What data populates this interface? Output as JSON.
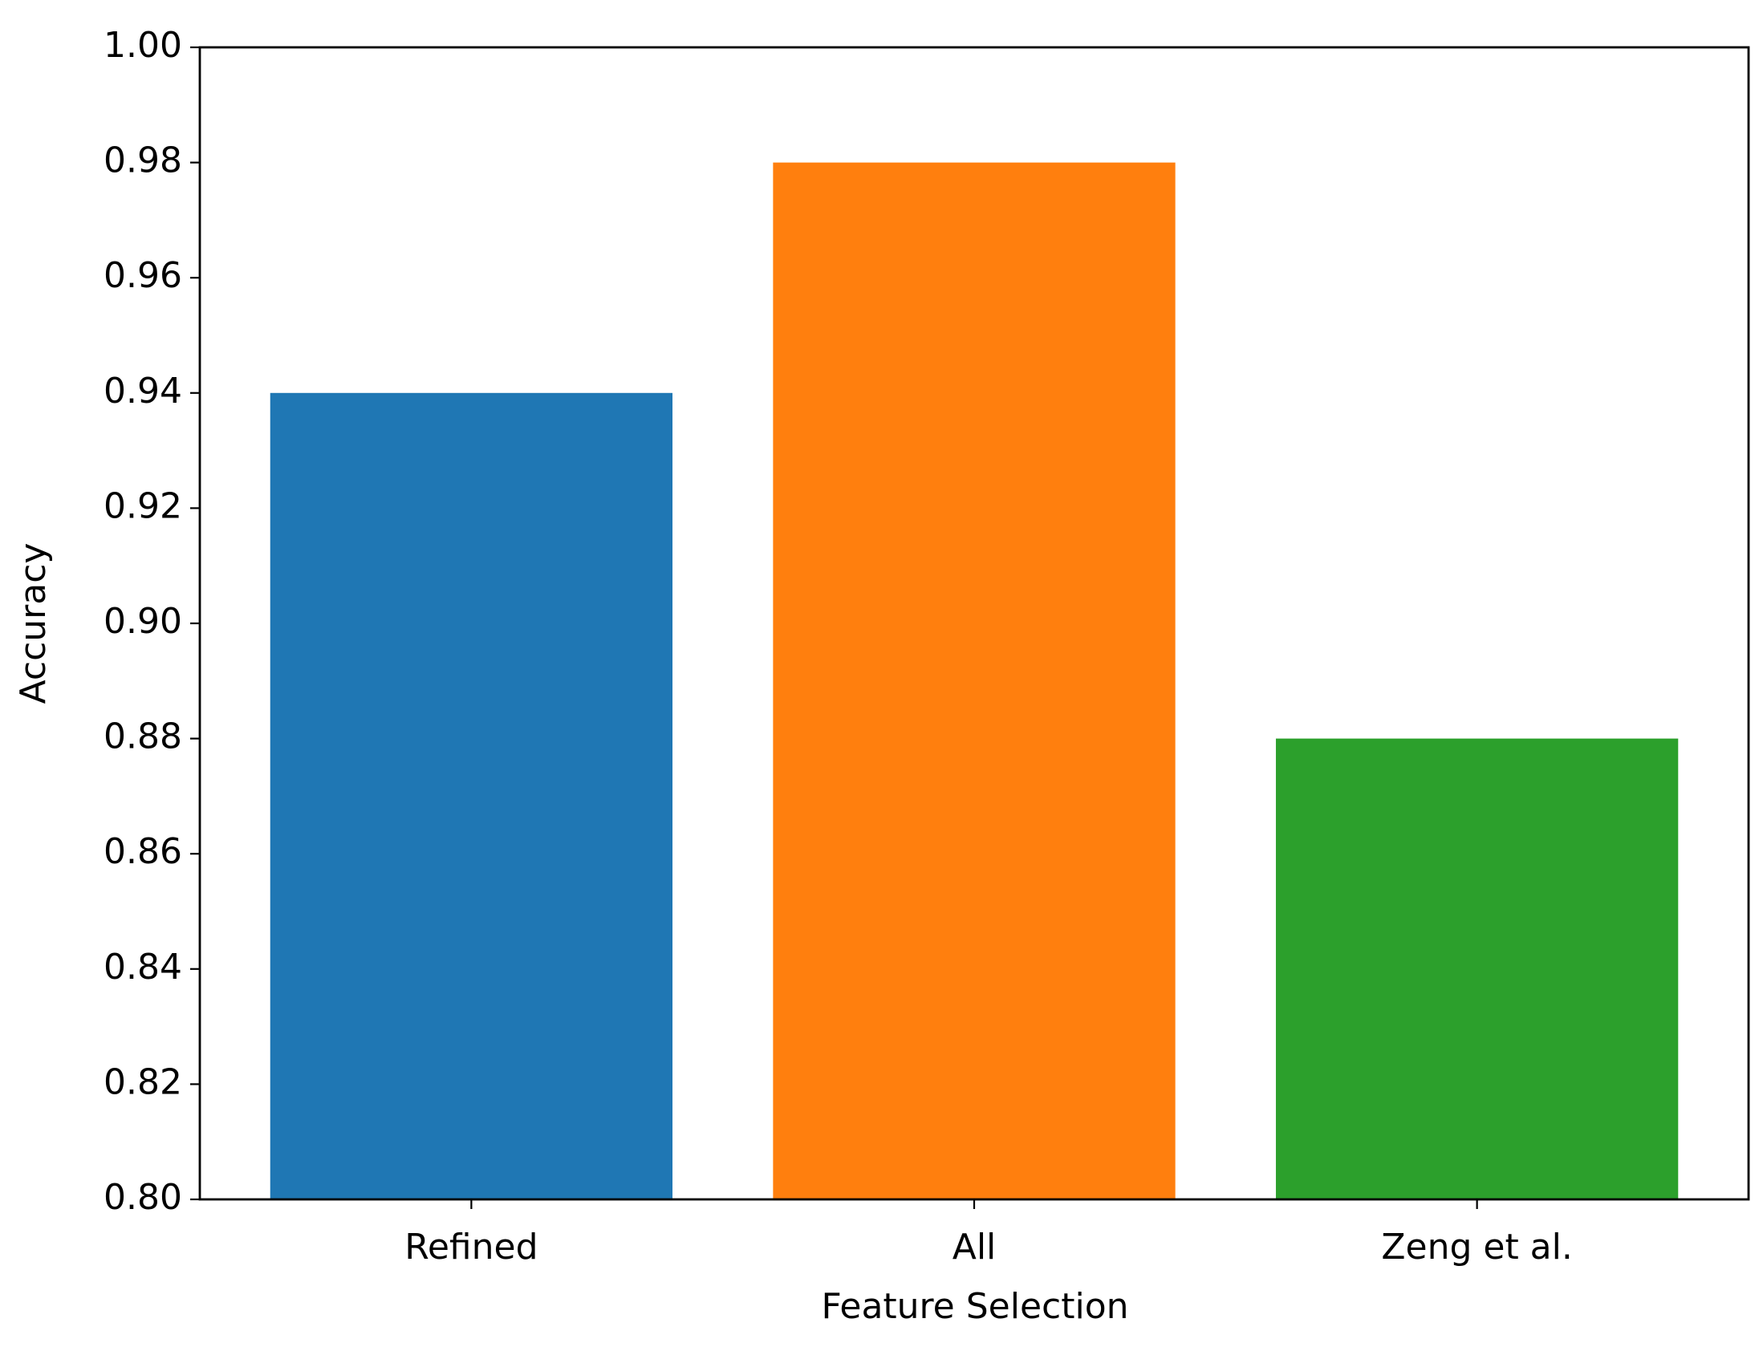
{
  "chart_data": {
    "type": "bar",
    "x_label": "Feature Selection",
    "y_label": "Accuracy",
    "categories": [
      "Refined",
      "All",
      "Zeng et al."
    ],
    "values": [
      0.94,
      0.98,
      0.88
    ],
    "colors": [
      "#1f77b4",
      "#ff7f0e",
      "#2ca02c"
    ],
    "ylim": [
      0.8,
      1.0
    ],
    "yticks": [
      {
        "value": 0.8,
        "label": "0.80"
      },
      {
        "value": 0.82,
        "label": "0.82"
      },
      {
        "value": 0.84,
        "label": "0.84"
      },
      {
        "value": 0.86,
        "label": "0.86"
      },
      {
        "value": 0.88,
        "label": "0.88"
      },
      {
        "value": 0.9,
        "label": "0.90"
      },
      {
        "value": 0.92,
        "label": "0.92"
      },
      {
        "value": 0.94,
        "label": "0.94"
      },
      {
        "value": 0.96,
        "label": "0.96"
      },
      {
        "value": 0.98,
        "label": "0.98"
      },
      {
        "value": 1.0,
        "label": "1.00"
      }
    ],
    "grid": false
  }
}
